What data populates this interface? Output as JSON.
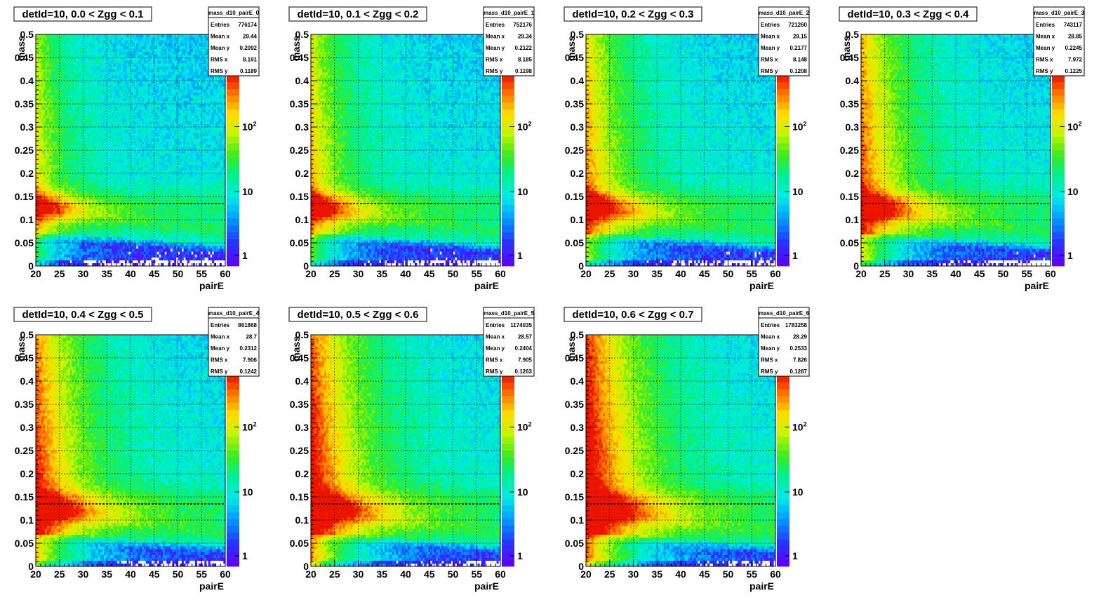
{
  "chart_data": [
    {
      "type": "heatmap",
      "title": "detId=10, 0.0 < Zgg < 0.1",
      "xlabel": "pairE",
      "ylabel": "mass",
      "xlim": [
        20,
        60
      ],
      "ylim": [
        0,
        0.5
      ],
      "xticks": [
        "20",
        "25",
        "30",
        "35",
        "40",
        "45",
        "50",
        "55",
        "60"
      ],
      "yticks": [
        "0",
        "0.05",
        "0.1",
        "0.15",
        "0.2",
        "0.25",
        "0.3",
        "0.35",
        "0.4",
        "0.45",
        "0.5"
      ],
      "z_scale": "log",
      "colorbar_labels": [
        "1",
        "10",
        "10",
        "2"
      ],
      "grid": true,
      "reference_line_mass": 0.135,
      "zgg_bin": 0,
      "stats": {
        "name": "mass_d10_pairE_0",
        "rows": [
          [
            "Entries",
            "776174"
          ],
          [
            "Mean x",
            "29.44"
          ],
          [
            "Mean y",
            "0.2092"
          ],
          [
            "RMS x",
            "8.191"
          ],
          [
            "RMS y",
            "0.1189"
          ]
        ]
      }
    },
    {
      "type": "heatmap",
      "title": "detId=10, 0.1 < Zgg < 0.2",
      "xlabel": "pairE",
      "ylabel": "mass",
      "xlim": [
        20,
        60
      ],
      "ylim": [
        0,
        0.5
      ],
      "xticks": [
        "20",
        "25",
        "30",
        "35",
        "40",
        "45",
        "50",
        "55",
        "60"
      ],
      "yticks": [
        "0",
        "0.05",
        "0.1",
        "0.15",
        "0.2",
        "0.25",
        "0.3",
        "0.35",
        "0.4",
        "0.45",
        "0.5"
      ],
      "z_scale": "log",
      "colorbar_labels": [
        "1",
        "10",
        "10",
        "2"
      ],
      "grid": true,
      "reference_line_mass": 0.135,
      "zgg_bin": 1,
      "stats": {
        "name": "mass_d10_pairE_1",
        "rows": [
          [
            "Entries",
            "752176"
          ],
          [
            "Mean x",
            "29.34"
          ],
          [
            "Mean y",
            "0.2122"
          ],
          [
            "RMS x",
            "8.185"
          ],
          [
            "RMS y",
            "0.1198"
          ]
        ]
      }
    },
    {
      "type": "heatmap",
      "title": "detId=10, 0.2 < Zgg < 0.3",
      "xlabel": "pairE",
      "ylabel": "mass",
      "xlim": [
        20,
        60
      ],
      "ylim": [
        0,
        0.5
      ],
      "xticks": [
        "20",
        "25",
        "30",
        "35",
        "40",
        "45",
        "50",
        "55",
        "60"
      ],
      "yticks": [
        "0",
        "0.05",
        "0.1",
        "0.15",
        "0.2",
        "0.25",
        "0.3",
        "0.35",
        "0.4",
        "0.45",
        "0.5"
      ],
      "z_scale": "log",
      "colorbar_labels": [
        "1",
        "10",
        "10",
        "2"
      ],
      "grid": true,
      "reference_line_mass": 0.135,
      "zgg_bin": 2,
      "stats": {
        "name": "mass_d10_pairE_2",
        "rows": [
          [
            "Entries",
            "721260"
          ],
          [
            "Mean x",
            "29.15"
          ],
          [
            "Mean y",
            "0.2177"
          ],
          [
            "RMS x",
            "8.148"
          ],
          [
            "RMS y",
            "0.1208"
          ]
        ]
      }
    },
    {
      "type": "heatmap",
      "title": "detId=10, 0.3 < Zgg < 0.4",
      "xlabel": "pairE",
      "ylabel": "mass",
      "xlim": [
        20,
        60
      ],
      "ylim": [
        0,
        0.5
      ],
      "xticks": [
        "20",
        "25",
        "30",
        "35",
        "40",
        "45",
        "50",
        "55",
        "60"
      ],
      "yticks": [
        "0",
        "0.05",
        "0.1",
        "0.15",
        "0.2",
        "0.25",
        "0.3",
        "0.35",
        "0.4",
        "0.45",
        "0.5"
      ],
      "z_scale": "log",
      "colorbar_labels": [
        "1",
        "10",
        "10",
        "2"
      ],
      "grid": true,
      "reference_line_mass": 0.135,
      "zgg_bin": 3,
      "stats": {
        "name": "mass_d10_pairE_3",
        "rows": [
          [
            "Entries",
            "743117"
          ],
          [
            "Mean x",
            "28.85"
          ],
          [
            "Mean y",
            "0.2245"
          ],
          [
            "RMS x",
            "7.972"
          ],
          [
            "RMS y",
            "0.1225"
          ]
        ]
      }
    },
    {
      "type": "heatmap",
      "title": "detId=10, 0.4 < Zgg < 0.5",
      "xlabel": "pairE",
      "ylabel": "mass",
      "xlim": [
        20,
        60
      ],
      "ylim": [
        0,
        0.5
      ],
      "xticks": [
        "20",
        "25",
        "30",
        "35",
        "40",
        "45",
        "50",
        "55",
        "60"
      ],
      "yticks": [
        "0",
        "0.05",
        "0.1",
        "0.15",
        "0.2",
        "0.25",
        "0.3",
        "0.35",
        "0.4",
        "0.45",
        "0.5"
      ],
      "z_scale": "log",
      "colorbar_labels": [
        "1",
        "10",
        "10",
        "2"
      ],
      "grid": true,
      "reference_line_mass": 0.135,
      "zgg_bin": 4,
      "stats": {
        "name": "mass_d10_pairE_4",
        "rows": [
          [
            "Entries",
            "861868"
          ],
          [
            "Mean x",
            "28.7"
          ],
          [
            "Mean y",
            "0.2312"
          ],
          [
            "RMS x",
            "7.906"
          ],
          [
            "RMS y",
            "0.1242"
          ]
        ]
      }
    },
    {
      "type": "heatmap",
      "title": "detId=10, 0.5 < Zgg < 0.6",
      "xlabel": "pairE",
      "ylabel": "mass",
      "xlim": [
        20,
        60
      ],
      "ylim": [
        0,
        0.5
      ],
      "xticks": [
        "20",
        "25",
        "30",
        "35",
        "40",
        "45",
        "50",
        "55",
        "60"
      ],
      "yticks": [
        "0",
        "0.05",
        "0.1",
        "0.15",
        "0.2",
        "0.25",
        "0.3",
        "0.35",
        "0.4",
        "0.45",
        "0.5"
      ],
      "z_scale": "log",
      "colorbar_labels": [
        "1",
        "10",
        "10",
        "2"
      ],
      "grid": true,
      "reference_line_mass": 0.135,
      "zgg_bin": 5,
      "stats": {
        "name": "mass_d10_pairE_5",
        "rows": [
          [
            "Entries",
            "1174035"
          ],
          [
            "Mean x",
            "28.57"
          ],
          [
            "Mean y",
            "0.2404"
          ],
          [
            "RMS x",
            "7.905"
          ],
          [
            "RMS y",
            "0.1263"
          ]
        ]
      }
    },
    {
      "type": "heatmap",
      "title": "detId=10, 0.6 < Zgg < 0.7",
      "xlabel": "pairE",
      "ylabel": "mass",
      "xlim": [
        20,
        60
      ],
      "ylim": [
        0,
        0.5
      ],
      "xticks": [
        "20",
        "25",
        "30",
        "35",
        "40",
        "45",
        "50",
        "55",
        "60"
      ],
      "yticks": [
        "0",
        "0.05",
        "0.1",
        "0.15",
        "0.2",
        "0.25",
        "0.3",
        "0.35",
        "0.4",
        "0.45",
        "0.5"
      ],
      "z_scale": "log",
      "colorbar_labels": [
        "1",
        "10",
        "10",
        "2"
      ],
      "grid": true,
      "reference_line_mass": 0.135,
      "zgg_bin": 6,
      "stats": {
        "name": "mass_d10_pairE_6",
        "rows": [
          [
            "Entries",
            "1783258"
          ],
          [
            "Mean x",
            "28.29"
          ],
          [
            "Mean y",
            "0.2533"
          ],
          [
            "RMS x",
            "7.826"
          ],
          [
            "RMS y",
            "0.1287"
          ]
        ]
      }
    }
  ]
}
